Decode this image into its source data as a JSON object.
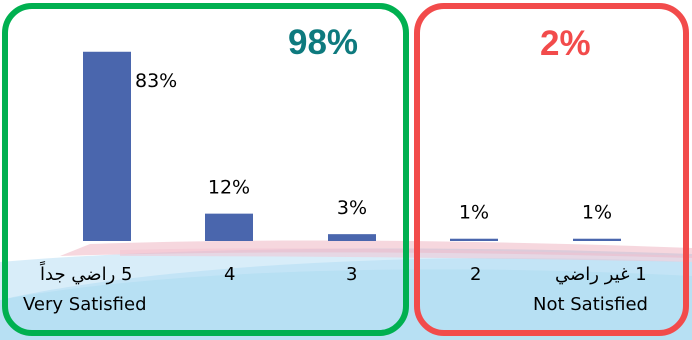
{
  "chart_data": {
    "type": "bar",
    "categories": [
      "5",
      "4",
      "3",
      "2",
      "1"
    ],
    "values": [
      83,
      12,
      3,
      1,
      1
    ],
    "value_labels": [
      "83%",
      "12%",
      "3%",
      "1%",
      "1%"
    ],
    "ylim": [
      0,
      100
    ],
    "grid": false,
    "bar_color": "#4a66ad",
    "groups": [
      {
        "total": "98%",
        "color": "#00b050",
        "total_color": "#0e7a7e",
        "category_indices": [
          0,
          1,
          2
        ]
      },
      {
        "total": "2%",
        "color": "#f24b4b",
        "total_color": "#f24b4b",
        "category_indices": [
          3,
          4
        ]
      }
    ]
  },
  "labels": {
    "cat5_ar": "5 راضي جداً",
    "cat5_en": "Very Satisfied",
    "cat4": "4",
    "cat3": "3",
    "cat2": "2",
    "cat1_ar": "1 غير راضي",
    "cat1_en": "Not Satisfied"
  },
  "background": {
    "swoosh_colors": [
      "#7cc6ea",
      "#c7e6f6",
      "#e58ba0",
      "#f3c2cf"
    ]
  }
}
